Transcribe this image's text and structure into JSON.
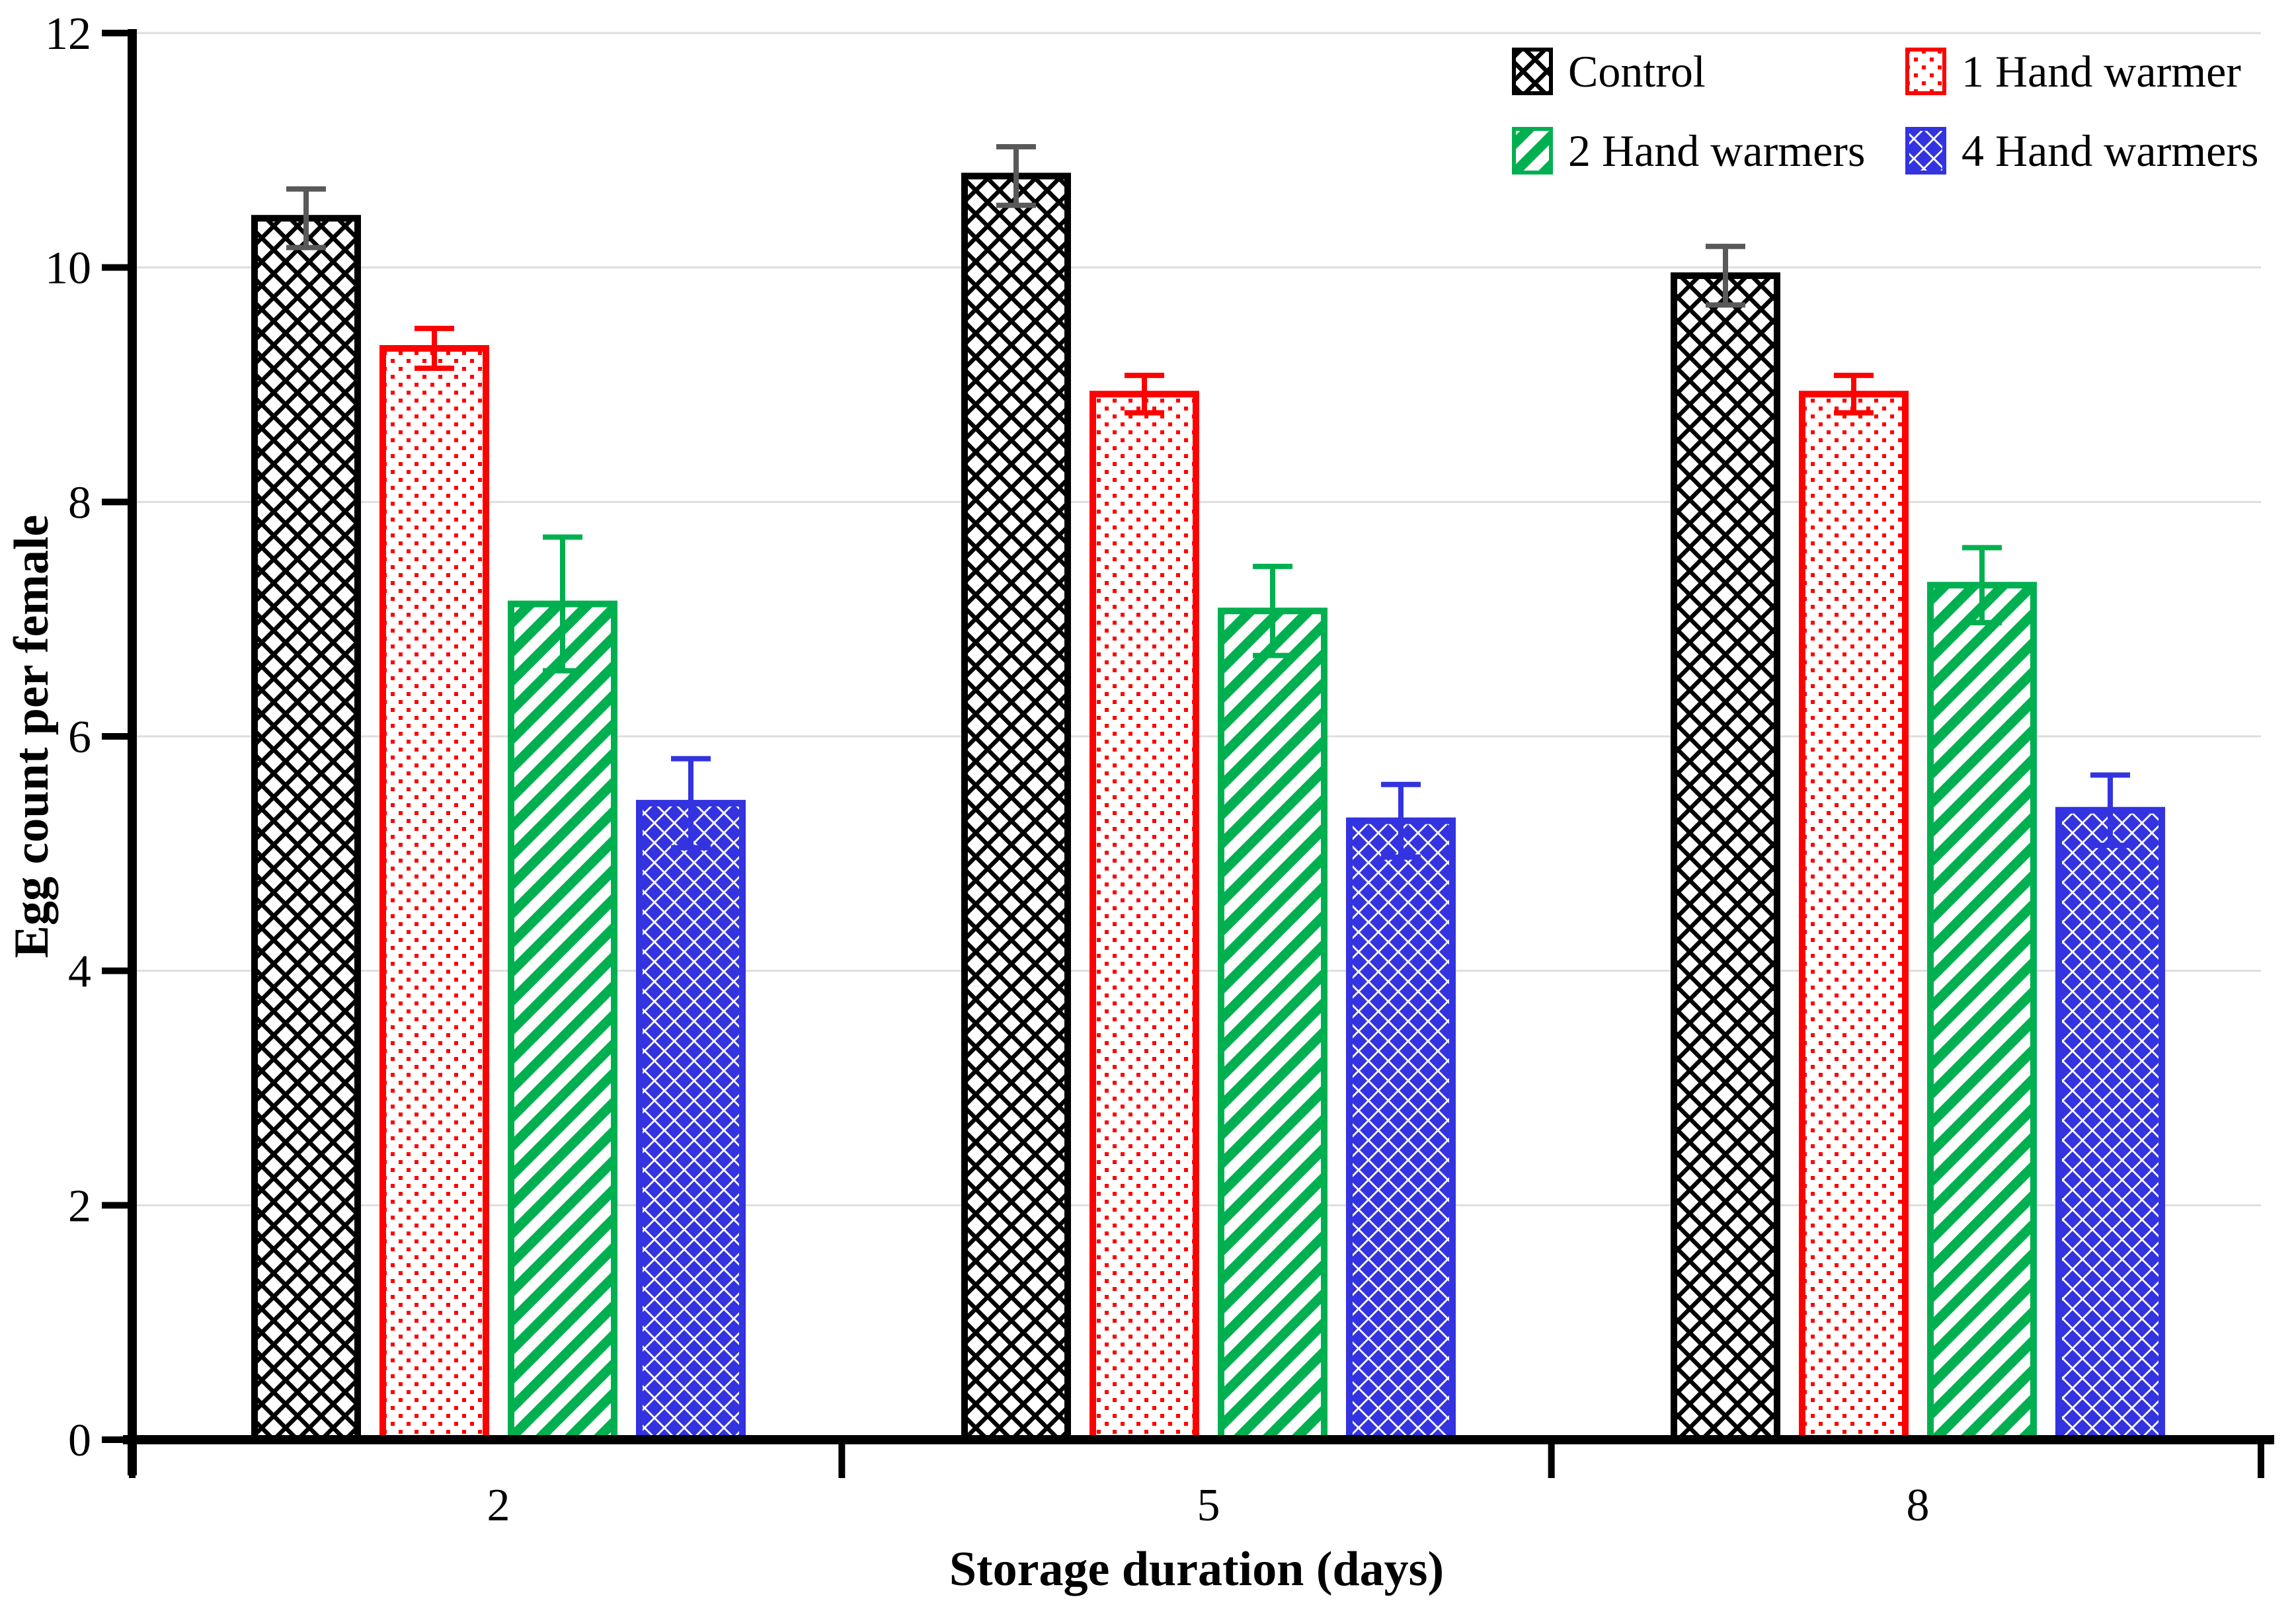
{
  "figure": {
    "background": "#FFFFFF",
    "description": "Grouped bar chart with error bars showing egg count per female by storage duration for four hand-warmer treatments"
  },
  "chart_data": {
    "type": "bar",
    "title": "",
    "xlabel": "Storage duration (days)",
    "ylabel": "Egg count per female",
    "categories": [
      "2",
      "5",
      "8"
    ],
    "y_ticks": [
      0,
      2,
      4,
      6,
      8,
      10,
      12
    ],
    "ylim": [
      0,
      12
    ],
    "grid": "horizontal",
    "grid_color": "#DEDEDE",
    "axis_color": "#000000",
    "legend_position": "top-right",
    "legend_columns": 2,
    "series": [
      {
        "name": "Control",
        "color": "#000000",
        "error_color": "#595959",
        "pattern": "crosshatch",
        "values": [
          10.42,
          10.78,
          9.93
        ],
        "errors": [
          0.25,
          0.25,
          0.25
        ]
      },
      {
        "name": "1 Hand warmer",
        "color": "#FF0000",
        "error_color": "#FF0000",
        "pattern": "dot-grid",
        "values": [
          9.31,
          8.92,
          8.92
        ],
        "errors": [
          0.17,
          0.16,
          0.16
        ]
      },
      {
        "name": "2 Hand warmers",
        "color": "#00B050",
        "error_color": "#00B050",
        "pattern": "diagonal-stripe",
        "values": [
          7.13,
          7.07,
          7.29
        ],
        "errors": [
          0.57,
          0.38,
          0.32
        ]
      },
      {
        "name": "4 Hand warmers",
        "color": "#3333E0",
        "error_color": "#3333E0",
        "pattern": "diamond-grid",
        "values": [
          5.43,
          5.28,
          5.37
        ],
        "errors": [
          0.38,
          0.31,
          0.3
        ]
      }
    ]
  }
}
